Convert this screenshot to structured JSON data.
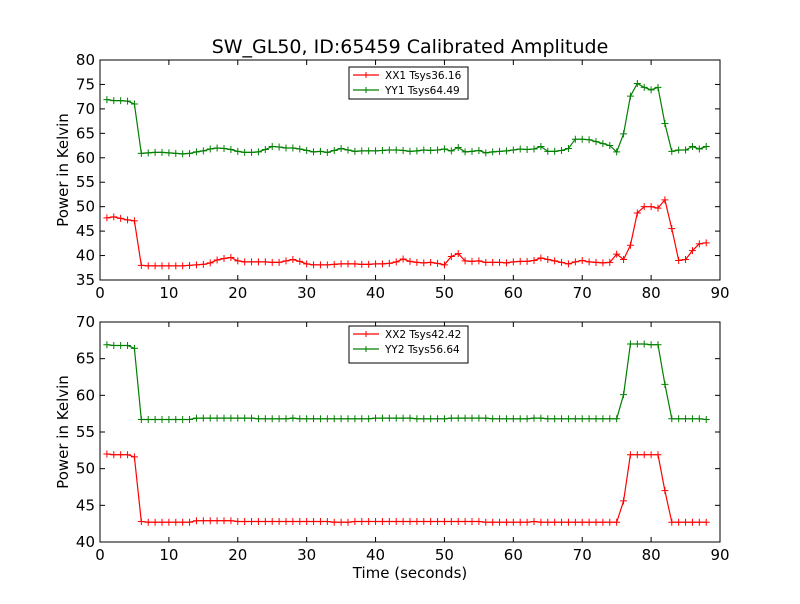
{
  "figure": {
    "title": "SW_GL50, ID:65459 Calibrated Amplitude",
    "xlabel": "Time (seconds)"
  },
  "chart_data": [
    {
      "type": "line",
      "title": "SW_GL50, ID:65459 Calibrated Amplitude",
      "xlabel": "",
      "ylabel": "Power in Kelvin",
      "xlim": [
        0,
        90
      ],
      "ylim": [
        35,
        80
      ],
      "xticks": [
        0,
        10,
        20,
        30,
        40,
        50,
        60,
        70,
        80,
        90
      ],
      "yticks": [
        35,
        40,
        45,
        50,
        55,
        60,
        65,
        70,
        75,
        80
      ],
      "grid": false,
      "legend_position": "top-center",
      "x": [
        1,
        2,
        3,
        4,
        5,
        6,
        7,
        8,
        9,
        10,
        11,
        12,
        13,
        14,
        15,
        16,
        17,
        18,
        19,
        20,
        21,
        22,
        23,
        24,
        25,
        26,
        27,
        28,
        29,
        30,
        31,
        32,
        33,
        34,
        35,
        36,
        37,
        38,
        39,
        40,
        41,
        42,
        43,
        44,
        45,
        46,
        47,
        48,
        49,
        50,
        51,
        52,
        53,
        54,
        55,
        56,
        57,
        58,
        59,
        60,
        61,
        62,
        63,
        64,
        65,
        66,
        67,
        68,
        69,
        70,
        71,
        72,
        73,
        74,
        75,
        76,
        77,
        78,
        79,
        80,
        81,
        82,
        83,
        84,
        85,
        86,
        87,
        88
      ],
      "series": [
        {
          "name": "XX1 Tsys36.16",
          "color": "#ff0000",
          "values": [
            47.7,
            47.9,
            47.6,
            47.3,
            47.1,
            38.0,
            37.9,
            37.9,
            37.9,
            37.9,
            37.9,
            37.9,
            38.0,
            38.1,
            38.2,
            38.5,
            39.1,
            39.4,
            39.6,
            38.9,
            38.7,
            38.7,
            38.7,
            38.7,
            38.6,
            38.6,
            38.9,
            39.2,
            38.8,
            38.3,
            38.1,
            38.1,
            38.1,
            38.2,
            38.3,
            38.3,
            38.3,
            38.2,
            38.2,
            38.3,
            38.3,
            38.4,
            38.7,
            39.3,
            38.8,
            38.6,
            38.5,
            38.6,
            38.4,
            38.1,
            39.8,
            40.4,
            38.9,
            38.8,
            38.9,
            38.6,
            38.6,
            38.6,
            38.5,
            38.7,
            38.8,
            38.8,
            39.0,
            39.5,
            39.2,
            38.9,
            38.6,
            38.3,
            38.7,
            39.0,
            38.7,
            38.6,
            38.5,
            38.6,
            40.3,
            39.2,
            42.1,
            48.7,
            50.0,
            50.0,
            49.7,
            51.4,
            45.5,
            39.0,
            39.2,
            41.0,
            42.4,
            42.6
          ]
        },
        {
          "name": "YY1 Tsys64.49",
          "color": "#008000",
          "values": [
            71.9,
            71.7,
            71.7,
            71.6,
            71.0,
            60.9,
            61.0,
            61.1,
            61.1,
            61.0,
            60.9,
            60.8,
            60.9,
            61.2,
            61.4,
            61.8,
            62.0,
            61.9,
            61.7,
            61.3,
            61.1,
            61.1,
            61.2,
            61.7,
            62.3,
            62.2,
            62.0,
            62.0,
            61.8,
            61.5,
            61.2,
            61.3,
            61.1,
            61.5,
            61.9,
            61.6,
            61.3,
            61.4,
            61.4,
            61.4,
            61.5,
            61.6,
            61.6,
            61.5,
            61.3,
            61.4,
            61.6,
            61.5,
            61.6,
            61.8,
            61.4,
            62.1,
            61.2,
            61.3,
            61.5,
            61.0,
            61.2,
            61.3,
            61.4,
            61.6,
            61.8,
            61.7,
            61.8,
            62.3,
            61.3,
            61.3,
            61.5,
            61.9,
            63.8,
            63.8,
            63.7,
            63.3,
            62.9,
            62.5,
            61.2,
            64.9,
            72.6,
            75.2,
            74.4,
            73.9,
            74.4,
            67.0,
            61.3,
            61.6,
            61.6,
            62.3,
            61.8,
            62.3
          ]
        }
      ]
    },
    {
      "type": "line",
      "title": "",
      "xlabel": "Time (seconds)",
      "ylabel": "Power in Kelvin",
      "xlim": [
        0,
        90
      ],
      "ylim": [
        40,
        70
      ],
      "xticks": [
        0,
        10,
        20,
        30,
        40,
        50,
        60,
        70,
        80,
        90
      ],
      "yticks": [
        40,
        45,
        50,
        55,
        60,
        65,
        70
      ],
      "grid": false,
      "legend_position": "top-center",
      "x": [
        1,
        2,
        3,
        4,
        5,
        6,
        7,
        8,
        9,
        10,
        11,
        12,
        13,
        14,
        15,
        16,
        17,
        18,
        19,
        20,
        21,
        22,
        23,
        24,
        25,
        26,
        27,
        28,
        29,
        30,
        31,
        32,
        33,
        34,
        35,
        36,
        37,
        38,
        39,
        40,
        41,
        42,
        43,
        44,
        45,
        46,
        47,
        48,
        49,
        50,
        51,
        52,
        53,
        54,
        55,
        56,
        57,
        58,
        59,
        60,
        61,
        62,
        63,
        64,
        65,
        66,
        67,
        68,
        69,
        70,
        71,
        72,
        73,
        74,
        75,
        76,
        77,
        78,
        79,
        80,
        81,
        82,
        83,
        84,
        85,
        86,
        87,
        88
      ],
      "series": [
        {
          "name": "XX2 Tsys42.42",
          "color": "#ff0000",
          "values": [
            52.0,
            51.9,
            51.9,
            51.9,
            51.6,
            42.8,
            42.7,
            42.7,
            42.7,
            42.7,
            42.7,
            42.7,
            42.7,
            42.9,
            42.9,
            42.9,
            42.9,
            42.9,
            42.9,
            42.8,
            42.8,
            42.8,
            42.8,
            42.8,
            42.8,
            42.8,
            42.8,
            42.8,
            42.8,
            42.8,
            42.8,
            42.8,
            42.8,
            42.7,
            42.7,
            42.7,
            42.8,
            42.8,
            42.8,
            42.8,
            42.8,
            42.8,
            42.8,
            42.8,
            42.8,
            42.8,
            42.8,
            42.8,
            42.8,
            42.8,
            42.8,
            42.8,
            42.8,
            42.8,
            42.8,
            42.7,
            42.7,
            42.7,
            42.7,
            42.7,
            42.7,
            42.7,
            42.8,
            42.7,
            42.7,
            42.7,
            42.7,
            42.7,
            42.7,
            42.7,
            42.7,
            42.7,
            42.7,
            42.7,
            42.7,
            45.6,
            51.9,
            51.9,
            51.9,
            51.9,
            51.9,
            47.0,
            42.7,
            42.7,
            42.7,
            42.7,
            42.7,
            42.7
          ]
        },
        {
          "name": "YY2 Tsys56.64",
          "color": "#008000",
          "values": [
            66.9,
            66.8,
            66.8,
            66.8,
            66.4,
            56.7,
            56.7,
            56.7,
            56.7,
            56.7,
            56.7,
            56.7,
            56.7,
            56.9,
            56.9,
            56.9,
            56.9,
            56.9,
            56.9,
            56.9,
            56.9,
            56.9,
            56.8,
            56.8,
            56.8,
            56.8,
            56.8,
            56.9,
            56.8,
            56.8,
            56.8,
            56.8,
            56.8,
            56.8,
            56.8,
            56.8,
            56.8,
            56.8,
            56.8,
            56.9,
            56.9,
            56.9,
            56.9,
            56.9,
            56.9,
            56.8,
            56.8,
            56.8,
            56.8,
            56.8,
            56.9,
            56.9,
            56.9,
            56.9,
            56.9,
            56.9,
            56.8,
            56.8,
            56.8,
            56.8,
            56.8,
            56.8,
            56.9,
            56.9,
            56.8,
            56.8,
            56.8,
            56.8,
            56.8,
            56.8,
            56.8,
            56.8,
            56.8,
            56.8,
            56.8,
            60.1,
            67.0,
            67.0,
            67.0,
            66.9,
            66.9,
            61.5,
            56.8,
            56.8,
            56.8,
            56.8,
            56.8,
            56.7
          ]
        }
      ]
    }
  ]
}
